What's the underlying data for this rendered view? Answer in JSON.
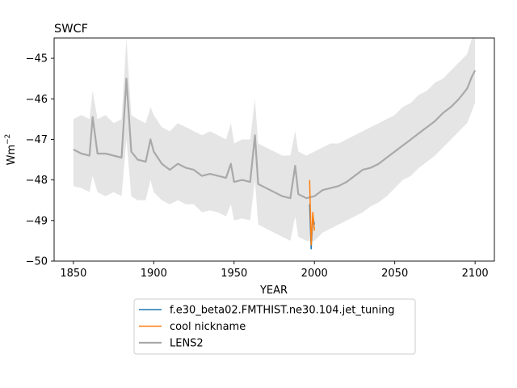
{
  "chart_data": {
    "type": "line",
    "title": "SWCF",
    "xlabel": "YEAR",
    "ylabel": "Wm",
    "ylabel_exponent": "−2",
    "xlim": [
      1838,
      2112
    ],
    "ylim": [
      -50,
      -44.5
    ],
    "xticks": [
      1850,
      1900,
      1950,
      2000,
      2050,
      2100
    ],
    "yticks": [
      -50,
      -49,
      -48,
      -47,
      -46,
      -45
    ],
    "xtick_labels": [
      "1850",
      "1900",
      "1950",
      "2000",
      "2050",
      "2100"
    ],
    "ytick_labels": [
      "−50",
      "−49",
      "−48",
      "−47",
      "−46",
      "−45"
    ],
    "grid": false,
    "legend_position": "below",
    "series": [
      {
        "name": "f.e30_beta02.FMTHIST.ne30.104.jet_tuning",
        "color": "#1f77b4",
        "x": [
          1997,
          1998,
          1999,
          2000
        ],
        "y": [
          -48.6,
          -49.7,
          -48.9,
          -49.1
        ]
      },
      {
        "name": "cool nickname",
        "color": "#ff7f0e",
        "x": [
          1997,
          1998,
          1999,
          2000
        ],
        "y": [
          -48.0,
          -49.6,
          -48.8,
          -49.25
        ]
      },
      {
        "name": "LENS2",
        "color": "#a9a9a9",
        "band_color": "#e5e5e5",
        "x": [
          1850,
          1855,
          1860,
          1862,
          1865,
          1870,
          1875,
          1880,
          1883,
          1886,
          1890,
          1895,
          1898,
          1900,
          1905,
          1910,
          1915,
          1920,
          1925,
          1930,
          1935,
          1940,
          1945,
          1948,
          1950,
          1955,
          1960,
          1963,
          1965,
          1970,
          1975,
          1980,
          1985,
          1988,
          1990,
          1995,
          2000,
          2005,
          2010,
          2015,
          2020,
          2025,
          2030,
          2035,
          2040,
          2045,
          2050,
          2055,
          2060,
          2065,
          2070,
          2075,
          2080,
          2085,
          2090,
          2095,
          2098,
          2100
        ],
        "y": [
          -47.25,
          -47.35,
          -47.4,
          -46.45,
          -47.35,
          -47.35,
          -47.4,
          -47.45,
          -45.5,
          -47.3,
          -47.5,
          -47.55,
          -47.0,
          -47.3,
          -47.6,
          -47.75,
          -47.6,
          -47.7,
          -47.75,
          -47.9,
          -47.85,
          -47.9,
          -47.95,
          -47.6,
          -48.05,
          -48.0,
          -48.05,
          -46.9,
          -48.1,
          -48.2,
          -48.3,
          -48.4,
          -48.45,
          -47.65,
          -48.35,
          -48.45,
          -48.4,
          -48.25,
          -48.2,
          -48.15,
          -48.05,
          -47.9,
          -47.75,
          -47.7,
          -47.6,
          -47.45,
          -47.3,
          -47.15,
          -47.0,
          -46.85,
          -46.7,
          -46.55,
          -46.35,
          -46.2,
          -46.0,
          -45.75,
          -45.45,
          -45.3
        ],
        "lower": [
          -48.15,
          -48.2,
          -48.3,
          -47.9,
          -48.3,
          -48.4,
          -48.3,
          -48.4,
          -47.0,
          -48.4,
          -48.5,
          -48.5,
          -48.0,
          -48.3,
          -48.5,
          -48.6,
          -48.5,
          -48.6,
          -48.6,
          -48.8,
          -48.75,
          -48.8,
          -48.9,
          -48.6,
          -49.0,
          -48.95,
          -49.0,
          -48.0,
          -49.1,
          -49.2,
          -49.3,
          -49.4,
          -49.5,
          -48.9,
          -49.4,
          -49.5,
          -49.5,
          -49.3,
          -49.2,
          -49.1,
          -49.0,
          -48.9,
          -48.8,
          -48.65,
          -48.55,
          -48.4,
          -48.2,
          -48.0,
          -47.9,
          -47.7,
          -47.55,
          -47.4,
          -47.2,
          -47.0,
          -46.8,
          -46.6,
          -46.3,
          -46.1
        ],
        "upper": [
          -46.5,
          -46.4,
          -46.5,
          -45.8,
          -46.5,
          -46.4,
          -46.6,
          -46.5,
          -44.5,
          -46.4,
          -46.5,
          -46.6,
          -46.2,
          -46.4,
          -46.7,
          -46.8,
          -46.6,
          -46.7,
          -46.8,
          -46.9,
          -46.8,
          -46.9,
          -47.0,
          -46.6,
          -47.1,
          -47.0,
          -47.0,
          -46.0,
          -47.1,
          -47.2,
          -47.3,
          -47.4,
          -47.4,
          -46.8,
          -47.3,
          -47.4,
          -47.3,
          -47.2,
          -47.1,
          -47.1,
          -47.0,
          -46.9,
          -46.8,
          -46.7,
          -46.6,
          -46.5,
          -46.4,
          -46.2,
          -46.1,
          -45.9,
          -45.8,
          -45.6,
          -45.5,
          -45.3,
          -45.1,
          -44.9,
          -44.5,
          -44.5
        ]
      }
    ]
  }
}
